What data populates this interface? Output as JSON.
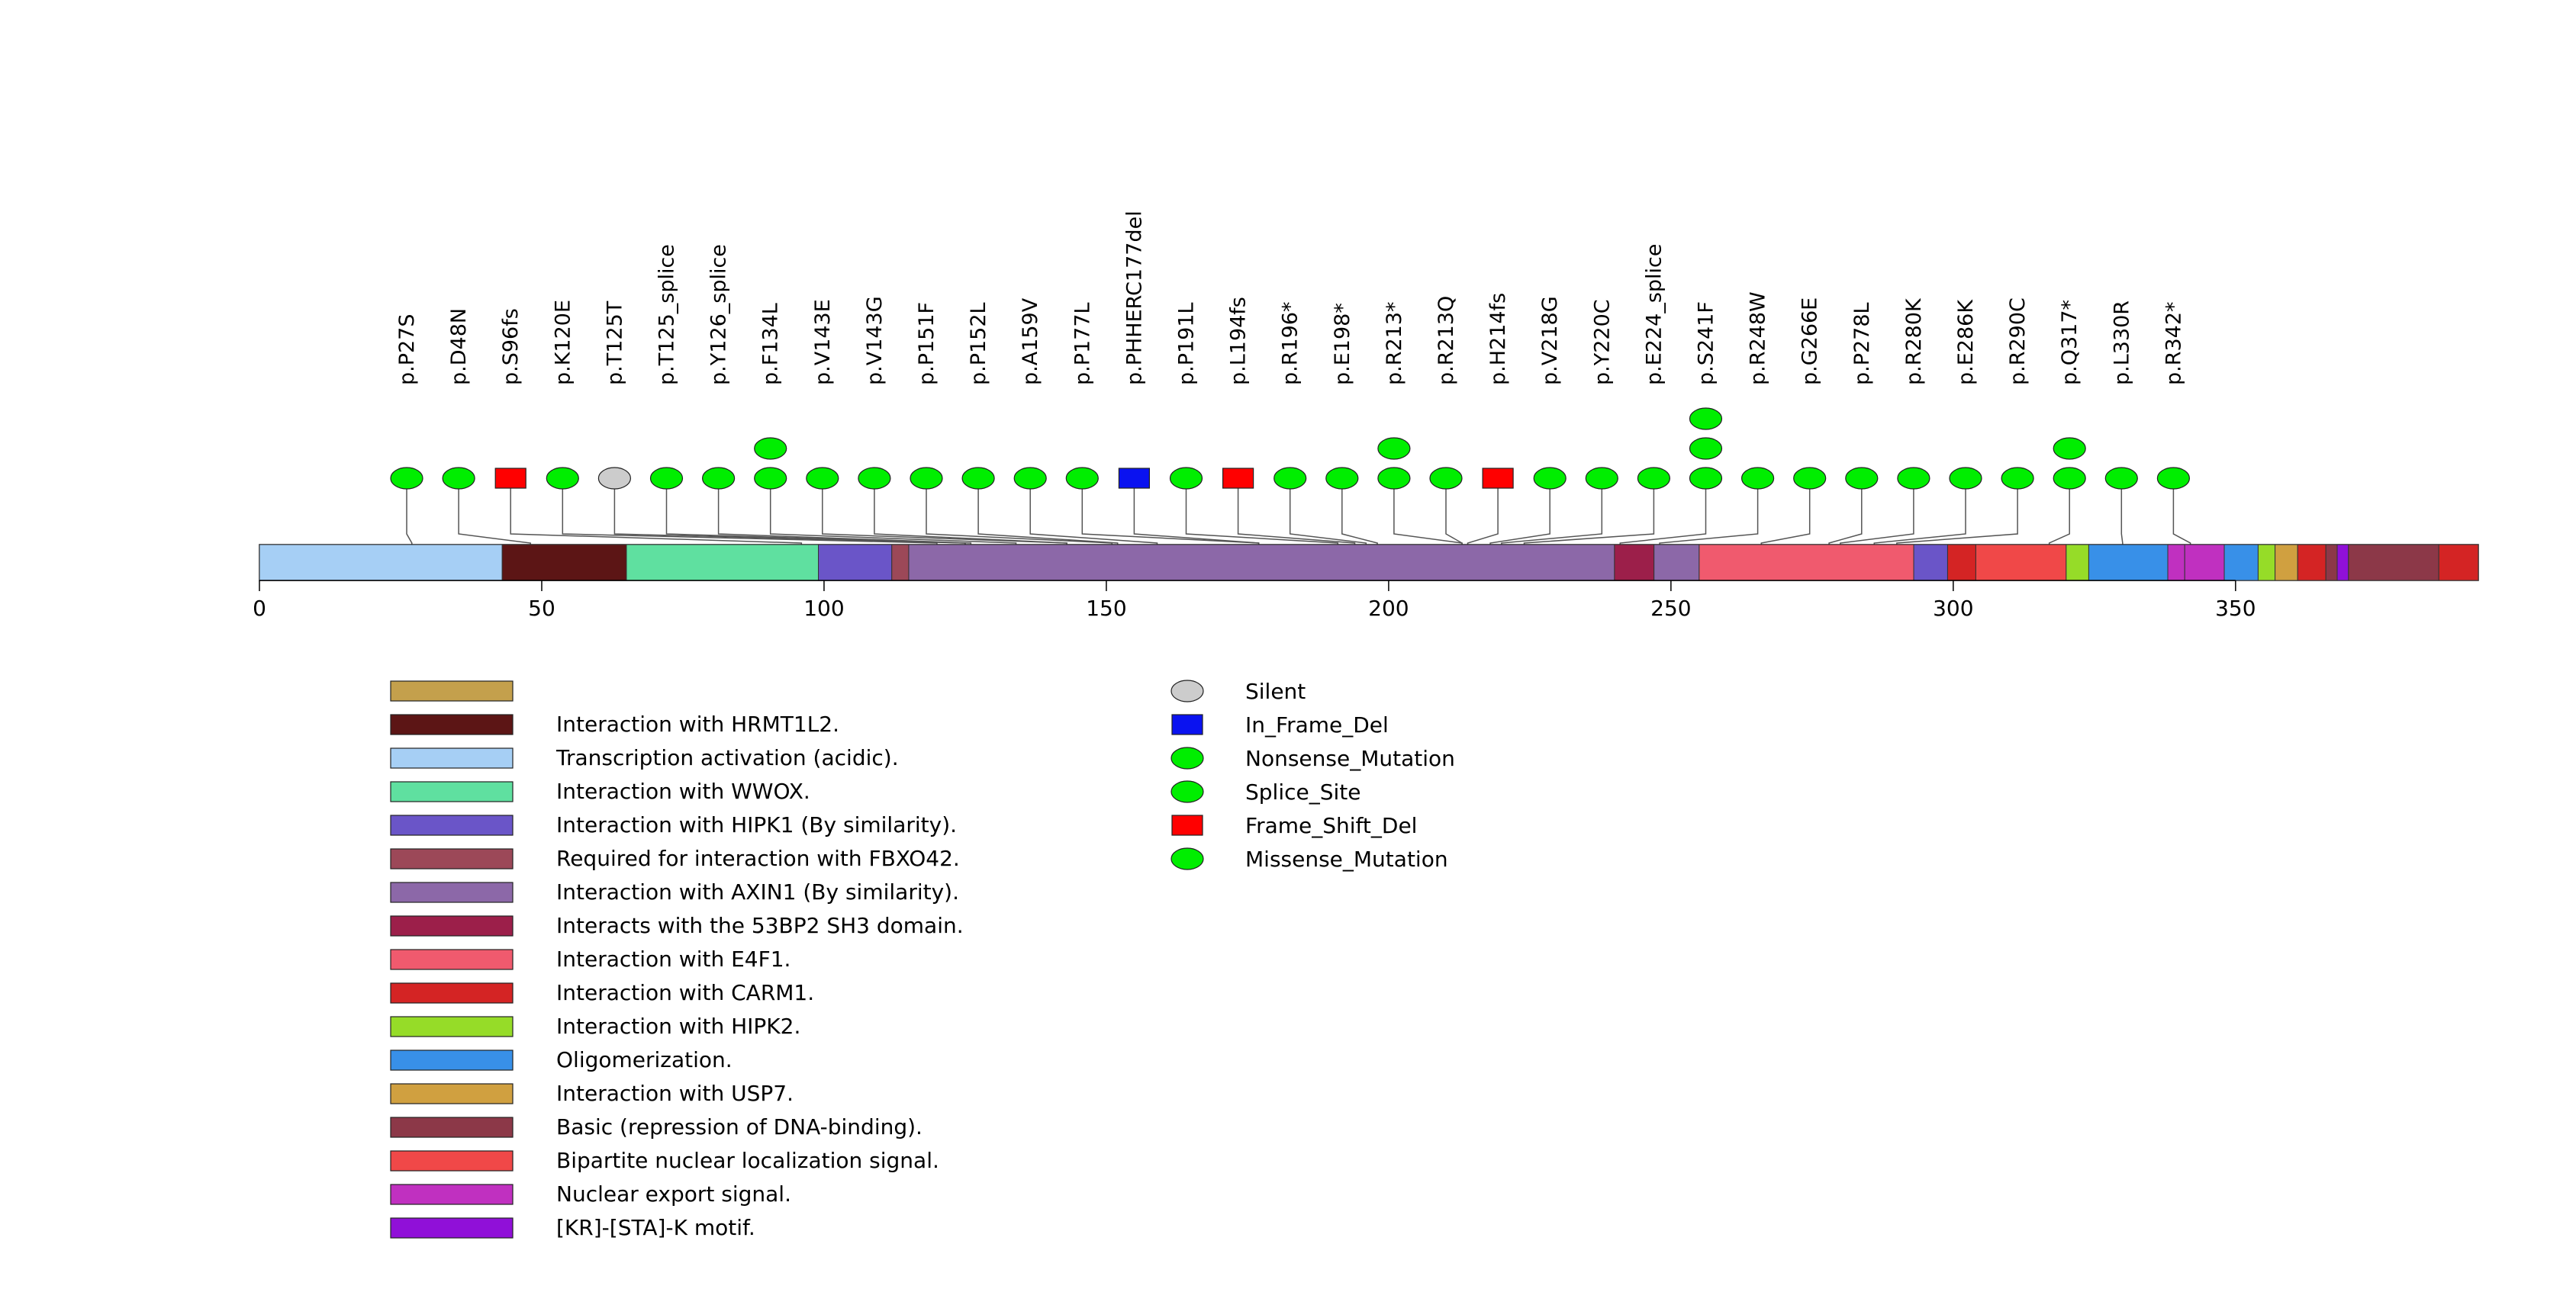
{
  "chart_data": {
    "type": "lollipop",
    "title": "",
    "xlabel": "",
    "ylabel": "",
    "axis": {
      "xlim": [
        0,
        393
      ],
      "ticks": [
        0,
        50,
        100,
        150,
        200,
        250,
        300,
        350
      ]
    },
    "domains": [
      {
        "start": 0,
        "end": 43,
        "label": "Transcription activation (acidic).",
        "color": "#a6cff5"
      },
      {
        "start": 43,
        "end": 65,
        "label": "Interaction with HRMT1L2.",
        "color": "#5c1515"
      },
      {
        "start": 65,
        "end": 99,
        "label": "Interaction with WWOX.",
        "color": "#5fe0a0"
      },
      {
        "start": 99,
        "end": 112,
        "label": "Interaction with HIPK1 (By similarity).",
        "color": "#6a55c8"
      },
      {
        "start": 112,
        "end": 115,
        "label": "Required for interaction with FBXO42.",
        "color": "#9c4858"
      },
      {
        "start": 115,
        "end": 240,
        "label": "Interaction with AXIN1 (By similarity).",
        "color": "#8c68a8"
      },
      {
        "start": 240,
        "end": 247,
        "label": "Interacts with the 53BP2 SH3 domain.",
        "color": "#9c1f4a"
      },
      {
        "start": 247,
        "end": 255,
        "label": "Interaction with AXIN1 (By similarity).",
        "color": "#8c68a8"
      },
      {
        "start": 255,
        "end": 293,
        "label": "Interaction with E4F1.",
        "color": "#f05a6e"
      },
      {
        "start": 293,
        "end": 299,
        "label": "Interaction with HIPK1 (By similarity).",
        "color": "#6a55c8"
      },
      {
        "start": 299,
        "end": 304,
        "label": "Interaction with CARM1.",
        "color": "#d42424"
      },
      {
        "start": 304,
        "end": 320,
        "label": "Bipartite nuclear localization signal.",
        "color": "#f04848"
      },
      {
        "start": 320,
        "end": 324,
        "label": "Interaction with HIPK2.",
        "color": "#96dc28"
      },
      {
        "start": 324,
        "end": 338,
        "label": "Oligomerization.",
        "color": "#3890e8"
      },
      {
        "start": 338,
        "end": 341,
        "label": "Nuclear export signal.",
        "color": "#c030c0"
      },
      {
        "start": 341,
        "end": 348,
        "label": "Nuclear export signal.",
        "color": "#c030c0"
      },
      {
        "start": 348,
        "end": 354,
        "label": "Oligomerization.",
        "color": "#3890e8"
      },
      {
        "start": 354,
        "end": 357,
        "label": "Interaction with HIPK2.",
        "color": "#96dc28"
      },
      {
        "start": 357,
        "end": 361,
        "label": "Interaction with USP7.",
        "color": "#d0a040"
      },
      {
        "start": 361,
        "end": 366,
        "label": "Interaction with CARM1.",
        "color": "#d42424"
      },
      {
        "start": 366,
        "end": 368,
        "label": "Basic (repression of DNA-binding).",
        "color": "#8c3848"
      },
      {
        "start": 368,
        "end": 370,
        "label": "[KR]-[STA]-K motif.",
        "color": "#9010d8"
      },
      {
        "start": 370,
        "end": 386,
        "label": "Basic (repression of DNA-binding).",
        "color": "#8c3848"
      },
      {
        "start": 386,
        "end": 393,
        "label": "Interaction with CARM1.",
        "color": "#d42424"
      }
    ],
    "mutations": [
      {
        "label": "p.P27S",
        "pos": 27,
        "type": "Missense_Mutation",
        "count": 1
      },
      {
        "label": "p.D48N",
        "pos": 48,
        "type": "Missense_Mutation",
        "count": 1
      },
      {
        "label": "p.S96fs",
        "pos": 96,
        "type": "Frame_Shift_Del",
        "count": 1
      },
      {
        "label": "p.K120E",
        "pos": 120,
        "type": "Missense_Mutation",
        "count": 1
      },
      {
        "label": "p.T125T",
        "pos": 125,
        "type": "Silent",
        "count": 1
      },
      {
        "label": "p.T125_splice",
        "pos": 125,
        "type": "Splice_Site",
        "count": 1
      },
      {
        "label": "p.Y126_splice",
        "pos": 126,
        "type": "Splice_Site",
        "count": 1
      },
      {
        "label": "p.F134L",
        "pos": 134,
        "type": "Missense_Mutation",
        "count": 2
      },
      {
        "label": "p.V143E",
        "pos": 143,
        "type": "Missense_Mutation",
        "count": 1
      },
      {
        "label": "p.V143G",
        "pos": 143,
        "type": "Missense_Mutation",
        "count": 1
      },
      {
        "label": "p.P151F",
        "pos": 151,
        "type": "Missense_Mutation",
        "count": 1
      },
      {
        "label": "p.P152L",
        "pos": 152,
        "type": "Missense_Mutation",
        "count": 1
      },
      {
        "label": "p.A159V",
        "pos": 159,
        "type": "Missense_Mutation",
        "count": 1
      },
      {
        "label": "p.P177L",
        "pos": 177,
        "type": "Missense_Mutation",
        "count": 1
      },
      {
        "label": "p.PHHERC177del",
        "pos": 177,
        "type": "In_Frame_Del",
        "count": 1
      },
      {
        "label": "p.P191L",
        "pos": 191,
        "type": "Missense_Mutation",
        "count": 1
      },
      {
        "label": "p.L194fs",
        "pos": 194,
        "type": "Frame_Shift_Del",
        "count": 1
      },
      {
        "label": "p.R196*",
        "pos": 196,
        "type": "Nonsense_Mutation",
        "count": 1
      },
      {
        "label": "p.E198*",
        "pos": 198,
        "type": "Nonsense_Mutation",
        "count": 1
      },
      {
        "label": "p.R213*",
        "pos": 213,
        "type": "Nonsense_Mutation",
        "count": 2
      },
      {
        "label": "p.R213Q",
        "pos": 213,
        "type": "Missense_Mutation",
        "count": 1
      },
      {
        "label": "p.H214fs",
        "pos": 214,
        "type": "Frame_Shift_Del",
        "count": 1
      },
      {
        "label": "p.V218G",
        "pos": 218,
        "type": "Missense_Mutation",
        "count": 1
      },
      {
        "label": "p.Y220C",
        "pos": 220,
        "type": "Missense_Mutation",
        "count": 1
      },
      {
        "label": "p.E224_splice",
        "pos": 224,
        "type": "Splice_Site",
        "count": 1
      },
      {
        "label": "p.S241F",
        "pos": 241,
        "type": "Missense_Mutation",
        "count": 3
      },
      {
        "label": "p.R248W",
        "pos": 248,
        "type": "Missense_Mutation",
        "count": 1
      },
      {
        "label": "p.G266E",
        "pos": 266,
        "type": "Missense_Mutation",
        "count": 1
      },
      {
        "label": "p.P278L",
        "pos": 278,
        "type": "Missense_Mutation",
        "count": 1
      },
      {
        "label": "p.R280K",
        "pos": 280,
        "type": "Missense_Mutation",
        "count": 1
      },
      {
        "label": "p.E286K",
        "pos": 286,
        "type": "Missense_Mutation",
        "count": 1
      },
      {
        "label": "p.R290C",
        "pos": 290,
        "type": "Missense_Mutation",
        "count": 1
      },
      {
        "label": "p.Q317*",
        "pos": 317,
        "type": "Nonsense_Mutation",
        "count": 2
      },
      {
        "label": "p.L330R",
        "pos": 330,
        "type": "Missense_Mutation",
        "count": 1
      },
      {
        "label": "p.R342*",
        "pos": 342,
        "type": "Nonsense_Mutation",
        "count": 1
      }
    ],
    "domain_legend": [
      {
        "label": "",
        "color": "#c4a04c"
      },
      {
        "label": "Interaction with HRMT1L2.",
        "color": "#5c1515"
      },
      {
        "label": "Transcription activation (acidic).",
        "color": "#a6cff5"
      },
      {
        "label": "Interaction with WWOX.",
        "color": "#5fe0a0"
      },
      {
        "label": "Interaction with HIPK1 (By similarity).",
        "color": "#6a55c8"
      },
      {
        "label": "Required for interaction with FBXO42.",
        "color": "#9c4858"
      },
      {
        "label": "Interaction with AXIN1 (By similarity).",
        "color": "#8c68a8"
      },
      {
        "label": "Interacts with the 53BP2 SH3 domain.",
        "color": "#9c1f4a"
      },
      {
        "label": "Interaction with E4F1.",
        "color": "#f05a6e"
      },
      {
        "label": "Interaction with CARM1.",
        "color": "#d42424"
      },
      {
        "label": "Interaction with HIPK2.",
        "color": "#96dc28"
      },
      {
        "label": "Oligomerization.",
        "color": "#3890e8"
      },
      {
        "label": "Interaction with USP7.",
        "color": "#d0a040"
      },
      {
        "label": "Basic (repression of DNA-binding).",
        "color": "#8c3848"
      },
      {
        "label": "Bipartite nuclear localization signal.",
        "color": "#f04848"
      },
      {
        "label": "Nuclear export signal.",
        "color": "#c030c0"
      },
      {
        "label": "[KR]-[STA]-K motif.",
        "color": "#9010d8"
      }
    ],
    "mutation_legend": [
      {
        "label": "Silent",
        "shape": "ellipse",
        "color": "#cccccc"
      },
      {
        "label": "In_Frame_Del",
        "shape": "rect",
        "color": "#0a12f0"
      },
      {
        "label": "Nonsense_Mutation",
        "shape": "ellipse",
        "color": "#00ee00"
      },
      {
        "label": "Splice_Site",
        "shape": "ellipse",
        "color": "#00ee00"
      },
      {
        "label": "Frame_Shift_Del",
        "shape": "rect",
        "color": "#ff0000"
      },
      {
        "label": "Missense_Mutation",
        "shape": "ellipse",
        "color": "#00ee00"
      }
    ]
  }
}
